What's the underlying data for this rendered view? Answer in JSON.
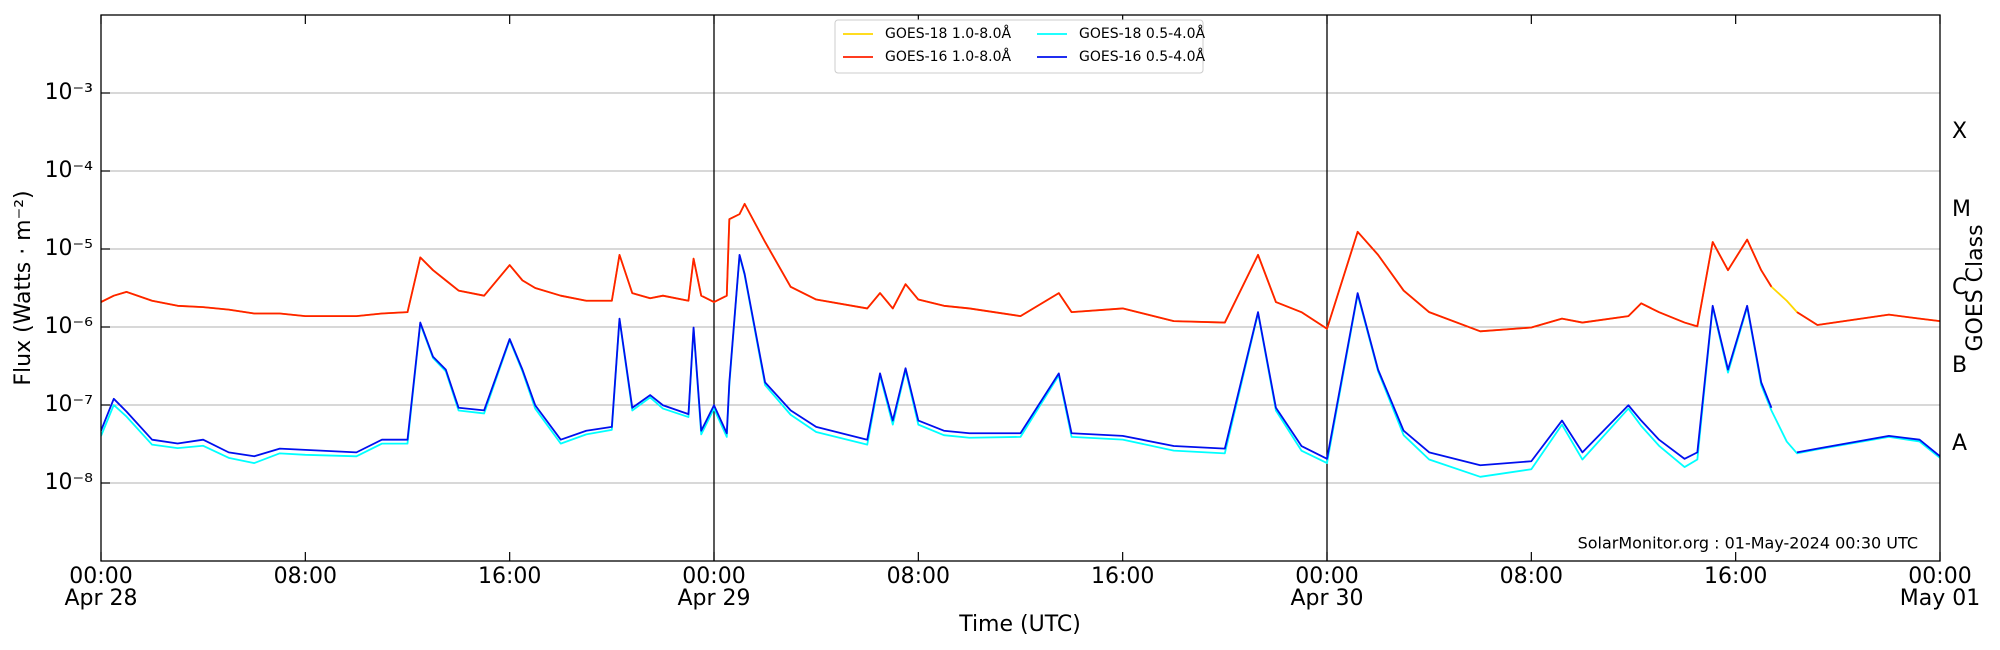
{
  "chart_data": {
    "type": "line",
    "xlabel": "Time (UTC)",
    "ylabel": "Flux (Watts · m⁻²)",
    "y2label": "GOES Class",
    "annotation": "SolarMonitor.org : 01-May-2024 00:30 UTC",
    "yscale": "log",
    "grid": "y",
    "legend": "upper center",
    "xlim": [
      0,
      72
    ],
    "ylim": [
      1e-09,
      0.01
    ],
    "y2lim": [
      1e-09,
      0.01
    ],
    "xticks": [
      {
        "value": 0,
        "label": "00:00",
        "date": "Apr 28"
      },
      {
        "value": 8,
        "label": "08:00"
      },
      {
        "value": 16,
        "label": "16:00"
      },
      {
        "value": 24,
        "label": "00:00",
        "date": "Apr 29"
      },
      {
        "value": 32,
        "label": "08:00"
      },
      {
        "value": 40,
        "label": "16:00"
      },
      {
        "value": 48,
        "label": "00:00",
        "date": "Apr 30"
      },
      {
        "value": 56,
        "label": "08:00"
      },
      {
        "value": 64,
        "label": "16:00"
      },
      {
        "value": 72,
        "label": "00:00",
        "date": "May 01"
      }
    ],
    "yticks": [
      {
        "value": 1e-08,
        "label": "10⁻⁸"
      },
      {
        "value": 1e-07,
        "label": "10⁻⁷"
      },
      {
        "value": 1e-06,
        "label": "10⁻⁶"
      },
      {
        "value": 1e-05,
        "label": "10⁻⁵"
      },
      {
        "value": 0.0001,
        "label": "10⁻⁴"
      },
      {
        "value": 0.001,
        "label": "10⁻³"
      }
    ],
    "y2ticks": [
      {
        "value": 3.162e-08,
        "label": "A"
      },
      {
        "value": 3.162e-07,
        "label": "B"
      },
      {
        "value": 3.162e-06,
        "label": "C"
      },
      {
        "value": 3.162e-05,
        "label": "M"
      },
      {
        "value": 0.0003162,
        "label": "X"
      }
    ],
    "vlines": [
      24,
      48
    ],
    "x": [
      0,
      0.5,
      1,
      2,
      3,
      4,
      5,
      6,
      7,
      8,
      10,
      11,
      12,
      12.5,
      13,
      13.5,
      14,
      15,
      16,
      16.5,
      17,
      18,
      19,
      20,
      20.3,
      20.8,
      21.5,
      22,
      23,
      23.2,
      23.5,
      24,
      24.5,
      24.6,
      25,
      25.2,
      26,
      27,
      28,
      30,
      30.5,
      31,
      31.5,
      32,
      33,
      34,
      36,
      37.5,
      38,
      40,
      42,
      44,
      45.3,
      46,
      47,
      48,
      49.2,
      50,
      51,
      52,
      54,
      56,
      57.2,
      58,
      59.8,
      60.3,
      61,
      62,
      62.5,
      63.1,
      63.7,
      64.45,
      65,
      65.4,
      66,
      66.4,
      67.2,
      70,
      71.2,
      72
    ],
    "series": [
      {
        "name": "GOES-18 1.0-8.0Å",
        "color": "#ffd700",
        "values": [
          2.09e-06,
          2.52e-06,
          2.82e-06,
          2.17e-06,
          1.87e-06,
          1.8e-06,
          1.67e-06,
          1.49e-06,
          1.49e-06,
          1.38e-06,
          1.38e-06,
          1.49e-06,
          1.55e-06,
          7.8e-06,
          5.35e-06,
          3.96e-06,
          2.93e-06,
          2.52e-06,
          6.22e-06,
          3.96e-06,
          3.16e-06,
          2.52e-06,
          2.17e-06,
          2.17e-06,
          8.41e-06,
          2.72e-06,
          2.34e-06,
          2.52e-06,
          2.17e-06,
          7.51e-06,
          2.52e-06,
          2.09e-06,
          2.52e-06,
          2.41e-05,
          2.8e-05,
          3.79e-05,
          1.23e-05,
          3.28e-06,
          2.25e-06,
          1.73e-06,
          2.72e-06,
          1.73e-06,
          3.54e-06,
          2.25e-06,
          1.87e-06,
          1.73e-06,
          1.38e-06,
          2.72e-06,
          1.55e-06,
          1.73e-06,
          1.19e-06,
          1.14e-06,
          8.41e-06,
          2.09e-06,
          1.55e-06,
          9.49e-07,
          1.66e-05,
          8.41e-06,
          2.93e-06,
          1.55e-06,
          8.8e-07,
          9.85e-07,
          1.28e-06,
          1.14e-06,
          1.38e-06,
          2.01e-06,
          1.55e-06,
          1.14e-06,
          1.02e-06,
          1.23e-05,
          5.35e-06,
          1.32e-05,
          5.35e-06,
          3.28e-06,
          2.17e-06,
          1.55e-06,
          1.06e-06,
          1.44e-06,
          1.28e-06,
          1.19e-06
        ]
      },
      {
        "name": "GOES-16 1.0-8.0Å",
        "color": "#ff2000",
        "values": [
          2.09e-06,
          2.52e-06,
          2.82e-06,
          2.17e-06,
          1.87e-06,
          1.8e-06,
          1.67e-06,
          1.49e-06,
          1.49e-06,
          1.38e-06,
          1.38e-06,
          1.49e-06,
          1.55e-06,
          7.8e-06,
          5.35e-06,
          3.96e-06,
          2.93e-06,
          2.52e-06,
          6.22e-06,
          3.96e-06,
          3.16e-06,
          2.52e-06,
          2.17e-06,
          2.17e-06,
          8.41e-06,
          2.72e-06,
          2.34e-06,
          2.52e-06,
          2.17e-06,
          7.51e-06,
          2.52e-06,
          2.09e-06,
          2.52e-06,
          2.41e-05,
          2.8e-05,
          3.79e-05,
          1.23e-05,
          3.28e-06,
          2.25e-06,
          1.73e-06,
          2.72e-06,
          1.73e-06,
          3.54e-06,
          2.25e-06,
          1.87e-06,
          1.73e-06,
          1.38e-06,
          2.72e-06,
          1.55e-06,
          1.73e-06,
          1.19e-06,
          1.14e-06,
          8.41e-06,
          2.09e-06,
          1.55e-06,
          9.49e-07,
          1.66e-05,
          8.41e-06,
          2.93e-06,
          1.55e-06,
          8.8e-07,
          9.85e-07,
          1.28e-06,
          1.14e-06,
          1.38e-06,
          2.01e-06,
          1.55e-06,
          1.14e-06,
          1.02e-06,
          1.23e-05,
          5.35e-06,
          1.32e-05,
          5.35e-06,
          3.28e-06,
          null,
          1.55e-06,
          1.06e-06,
          1.44e-06,
          1.28e-06,
          1.19e-06
        ]
      },
      {
        "name": "GOES-18 0.5-4.0Å",
        "color": "#00ffff",
        "values": [
          4e-08,
          1e-07,
          7.1e-08,
          3.1e-08,
          2.8e-08,
          3e-08,
          2.1e-08,
          1.8e-08,
          2.4e-08,
          2.3e-08,
          2.2e-08,
          3.2e-08,
          3.2e-08,
          1.1e-06,
          4e-07,
          2.7e-07,
          8.5e-08,
          7.8e-08,
          6.8e-07,
          2.7e-07,
          9e-08,
          3.2e-08,
          4.2e-08,
          4.8e-08,
          1.25e-06,
          8.5e-08,
          1.25e-07,
          9e-08,
          7e-08,
          9.5e-07,
          4.2e-08,
          9e-08,
          3.9e-08,
          1.8e-07,
          8.2e-06,
          4.6e-06,
          1.8e-07,
          7.5e-08,
          4.5e-08,
          3.1e-08,
          2.4e-07,
          5.6e-08,
          2.8e-07,
          5.6e-08,
          4.1e-08,
          3.8e-08,
          3.9e-08,
          2.4e-07,
          3.9e-08,
          3.6e-08,
          2.6e-08,
          2.4e-08,
          1.5e-06,
          8.5e-08,
          2.6e-08,
          1.8e-08,
          2.6e-06,
          2.7e-07,
          4.1e-08,
          2e-08,
          1.2e-08,
          1.5e-08,
          5.6e-08,
          2e-08,
          9e-08,
          5.4e-08,
          3e-08,
          1.6e-08,
          2e-08,
          1.8e-06,
          2.6e-07,
          1.8e-06,
          1.8e-07,
          8.5e-08,
          3.4e-08,
          2.4e-08,
          2.7e-08,
          3.9e-08,
          3.4e-08,
          2.1e-08
        ]
      },
      {
        "name": "GOES-16 0.5-4.0Å",
        "color": "#0010ee",
        "values": [
          4.68e-08,
          1.2e-07,
          8.22e-08,
          3.59e-08,
          3.21e-08,
          3.59e-08,
          2.47e-08,
          2.2e-08,
          2.76e-08,
          2.66e-08,
          2.47e-08,
          3.59e-08,
          3.59e-08,
          1.14e-06,
          4.15e-07,
          2.84e-07,
          9.21e-08,
          8.54e-08,
          7.02e-07,
          2.84e-07,
          9.93e-08,
          3.59e-08,
          4.68e-08,
          5.24e-08,
          1.28e-06,
          9.21e-08,
          1.34e-07,
          9.93e-08,
          7.63e-08,
          9.85e-07,
          4.68e-08,
          9.93e-08,
          4.34e-08,
          1.95e-07,
          8.41e-06,
          4.78e-06,
          1.95e-07,
          8.54e-08,
          5.24e-08,
          3.59e-08,
          2.54e-07,
          6.32e-08,
          2.96e-07,
          6.32e-08,
          4.68e-08,
          4.34e-08,
          4.34e-08,
          2.54e-07,
          4.34e-08,
          4.02e-08,
          2.98e-08,
          2.76e-08,
          1.55e-06,
          9.21e-08,
          2.98e-08,
          2.04e-08,
          2.72e-06,
          2.84e-07,
          4.68e-08,
          2.47e-08,
          1.69e-08,
          1.9e-08,
          6.32e-08,
          2.47e-08,
          9.93e-08,
          6.32e-08,
          3.59e-08,
          2.04e-08,
          2.47e-08,
          1.87e-06,
          2.84e-07,
          1.87e-06,
          1.95e-07,
          9.21e-08,
          null,
          2.47e-08,
          2.76e-08,
          4.02e-08,
          3.59e-08,
          2.2e-08
        ]
      }
    ]
  }
}
